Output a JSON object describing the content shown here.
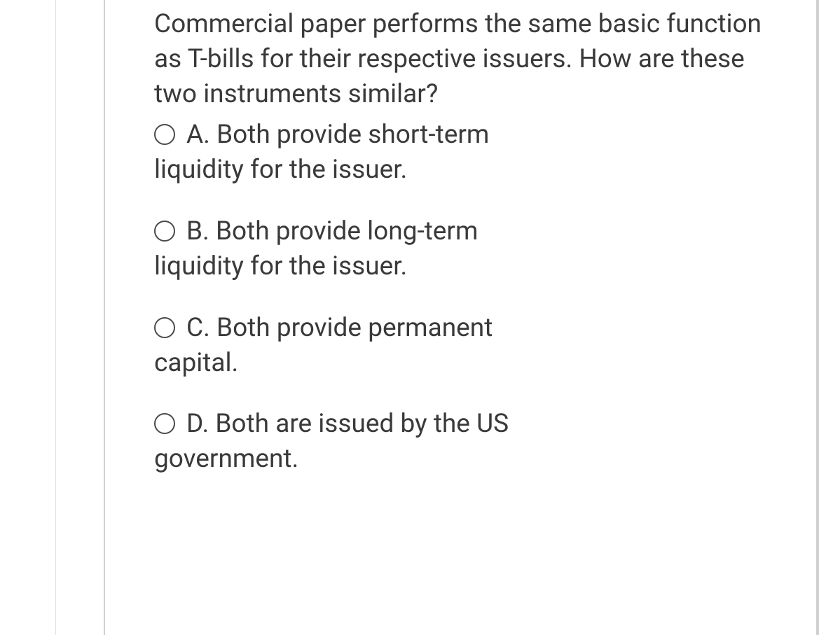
{
  "question": {
    "text": "Commercial paper performs the same basic function as T-bills for their respective issuers. How are these two instruments similar?",
    "text_color": "#3a3a3a",
    "font_size": 37
  },
  "options": [
    {
      "letter": "A.",
      "line1": "A. Both provide short-term",
      "line2": "liquidity for the issuer."
    },
    {
      "letter": "B.",
      "line1": "B. Both provide long-term",
      "line2": "liquidity for the issuer."
    },
    {
      "letter": "C.",
      "line1": "C. Both provide permanent",
      "line2": "capital."
    },
    {
      "letter": "D.",
      "line1": "D. Both are issued by the US",
      "line2": "government."
    }
  ],
  "style": {
    "background_color": "#ffffff",
    "border_color": "#d0d0d0",
    "radio_border_color": "#4a4a4a",
    "radio_size": 30,
    "font_family": "sans-serif"
  }
}
